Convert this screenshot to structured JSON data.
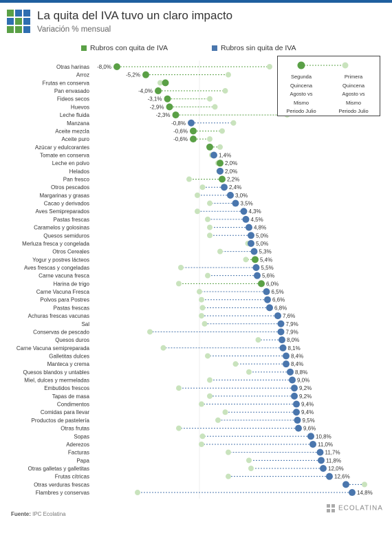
{
  "title": "La quita del IVA tuvo un claro impacto",
  "subtitle": "Variación % mensual",
  "colors": {
    "green": "#5aa046",
    "blue": "#4a76ad",
    "light": "#c9e3bd",
    "accent": "#1f5f9f"
  },
  "legend": {
    "with_iva_cut": "Rubros con quita de IVA",
    "without_iva_cut": "Rubros sin quita de IVA"
  },
  "key_box": {
    "left_label": [
      "Segunda",
      "Quincena",
      "Agosto vs",
      "Mismo",
      "Periodo Julio"
    ],
    "right_label": [
      "Primera",
      "Quincena",
      "Agosto vs",
      "Mismo",
      "Periodo Julio"
    ]
  },
  "source": {
    "label": "Fuente:",
    "text": "IPC Ecolatina"
  },
  "brand": "ECOLATINA",
  "chart_data": {
    "type": "dumbbell",
    "title": "La quita del IVA tuvo un claro impacto",
    "ylabel": "Variación % mensual",
    "x_unit": "%",
    "xlim": [
      -10,
      17
    ],
    "series": [
      {
        "name": "Segunda Quincena Agosto vs Mismo Periodo Julio",
        "field": "second"
      },
      {
        "name": "Primera Quincena Agosto vs Mismo Periodo Julio",
        "field": "first"
      }
    ],
    "items": [
      {
        "category": "Otras harinas",
        "second": -8.0,
        "first": 6.8,
        "label": "-8,0%",
        "group": "con"
      },
      {
        "category": "Arroz",
        "second": -5.2,
        "first": 2.8,
        "label": "-5,2%",
        "group": "con"
      },
      {
        "category": "Frutas en conserva",
        "second": -3.3,
        "first": -3.8,
        "label": "",
        "group": "con"
      },
      {
        "category": "Pan envasado",
        "second": -4.0,
        "first": 2.5,
        "label": "-4,0%",
        "group": "con"
      },
      {
        "category": "Fideos secos",
        "second": -3.1,
        "first": 1.0,
        "label": "-3,1%",
        "group": "con"
      },
      {
        "category": "Huevos",
        "second": -2.9,
        "first": 1.5,
        "label": "-2,9%",
        "group": "con"
      },
      {
        "category": "Leche fluida",
        "second": -2.3,
        "first": 8.5,
        "label": "-2,3%",
        "group": "con"
      },
      {
        "category": "Manzana",
        "second": -0.8,
        "first": 3.3,
        "label": "-0,8%",
        "group": "sin"
      },
      {
        "category": "Aceite mezcla",
        "second": -0.6,
        "first": 2.2,
        "label": "-0,6%",
        "group": "con"
      },
      {
        "category": "Aceite puro",
        "second": -0.6,
        "first": 1.0,
        "label": "-0,6%",
        "group": "con"
      },
      {
        "category": "Azúcar y edulcorantes",
        "second": 1.0,
        "first": 2.0,
        "label": "",
        "group": "con"
      },
      {
        "category": "Tomate en conserva",
        "second": 1.4,
        "first": 1.2,
        "label": "1,4%",
        "group": "sin"
      },
      {
        "category": "Leche en polvo",
        "second": 2.0,
        "first": 1.8,
        "label": "2,0%",
        "group": "con"
      },
      {
        "category": "Helados",
        "second": 2.0,
        "first": 1.9,
        "label": "2,0%",
        "group": "sin"
      },
      {
        "category": "Pan fresco",
        "second": 2.2,
        "first": -1.0,
        "label": "2,2%",
        "group": "con"
      },
      {
        "category": "Otros pescados",
        "second": 2.4,
        "first": 0.3,
        "label": "2,4%",
        "group": "sin"
      },
      {
        "category": "Margarinas y grasas",
        "second": 3.0,
        "first": -0.2,
        "label": "3,0%",
        "group": "sin"
      },
      {
        "category": "Cacao y derivados",
        "second": 3.5,
        "first": 1.0,
        "label": "3,5%",
        "group": "sin"
      },
      {
        "category": "Aves Semipreparados",
        "second": 4.3,
        "first": -0.2,
        "label": "4,3%",
        "group": "sin"
      },
      {
        "category": "Pastas frescas",
        "second": 4.5,
        "first": 0.8,
        "label": "4,5%",
        "group": "sin"
      },
      {
        "category": "Caramelos y golosinas",
        "second": 4.8,
        "first": 1.0,
        "label": "4,8%",
        "group": "sin"
      },
      {
        "category": "Quesos semiduros",
        "second": 5.0,
        "first": 1.0,
        "label": "5,0%",
        "group": "sin"
      },
      {
        "category": "Merluza fresca y congelada",
        "second": 5.0,
        "first": 4.7,
        "label": "5,0%",
        "group": "sin"
      },
      {
        "category": "Otros Cereales",
        "second": 5.3,
        "first": 2.0,
        "label": "5,3%",
        "group": "sin"
      },
      {
        "category": "Yogur y postres lácteos",
        "second": 5.4,
        "first": 4.5,
        "label": "5,4%",
        "group": "con"
      },
      {
        "category": "Aves frescas y congeladas",
        "second": 5.5,
        "first": -1.8,
        "label": "5,5%",
        "group": "sin"
      },
      {
        "category": "Carne vacuna fresca",
        "second": 5.6,
        "first": 0.8,
        "label": "5,6%",
        "group": "sin"
      },
      {
        "category": "Harina de trigo",
        "second": 6.0,
        "first": -2.0,
        "label": "6,0%",
        "group": "con"
      },
      {
        "category": "Carne Vacuna Fresca",
        "second": 6.5,
        "first": 0.0,
        "label": "6,5%",
        "group": "sin"
      },
      {
        "category": "Polvos para Postres",
        "second": 6.6,
        "first": 0.2,
        "label": "6,6%",
        "group": "sin"
      },
      {
        "category": "Pastas frescas",
        "second": 6.8,
        "first": 0.3,
        "label": "6,8%",
        "group": "sin"
      },
      {
        "category": "Achuras frescas vacunas",
        "second": 7.6,
        "first": 0.2,
        "label": "7,6%",
        "group": "sin"
      },
      {
        "category": "Sal",
        "second": 7.9,
        "first": 0.5,
        "label": "7,9%",
        "group": "sin"
      },
      {
        "category": "Conservas de pescado",
        "second": 7.9,
        "first": -4.8,
        "label": "7,9%",
        "group": "sin"
      },
      {
        "category": "Quesos duros",
        "second": 8.0,
        "first": 5.7,
        "label": "8,0%",
        "group": "sin"
      },
      {
        "category": "Carne Vacuna semipreparada",
        "second": 8.1,
        "first": -3.5,
        "label": "8,1%",
        "group": "sin"
      },
      {
        "category": "Galletitas dulces",
        "second": 8.4,
        "first": 0.8,
        "label": "8,4%",
        "group": "sin"
      },
      {
        "category": "Manteca y crema",
        "second": 8.4,
        "first": 3.5,
        "label": "8,4%",
        "group": "sin"
      },
      {
        "category": "Quesos blandos y untables",
        "second": 8.8,
        "first": 4.8,
        "label": "8,8%",
        "group": "sin"
      },
      {
        "category": "Miel, dulces y mermeladas",
        "second": 9.0,
        "first": 1.0,
        "label": "9,0%",
        "group": "sin"
      },
      {
        "category": "Embutidos frescos",
        "second": 9.2,
        "first": -2.0,
        "label": "9,2%",
        "group": "sin"
      },
      {
        "category": "Tapas de masa",
        "second": 9.2,
        "first": 1.0,
        "label": "9,2%",
        "group": "sin"
      },
      {
        "category": "Condimentos",
        "second": 9.4,
        "first": 0.2,
        "label": "9,4%",
        "group": "sin"
      },
      {
        "category": "Comidas para llevar",
        "second": 9.4,
        "first": 2.5,
        "label": "9,4%",
        "group": "sin"
      },
      {
        "category": "Productos de pastelería",
        "second": 9.5,
        "first": 1.8,
        "label": "9,5%",
        "group": "sin"
      },
      {
        "category": "Otras frutas",
        "second": 9.6,
        "first": -2.0,
        "label": "9,6%",
        "group": "sin"
      },
      {
        "category": "Sopas",
        "second": 10.8,
        "first": 0.3,
        "label": "10,8%",
        "group": "sin"
      },
      {
        "category": "Aderezos",
        "second": 11.0,
        "first": 0.2,
        "label": "11,0%",
        "group": "sin"
      },
      {
        "category": "Facturas",
        "second": 11.7,
        "first": 2.8,
        "label": "11,7%",
        "group": "sin"
      },
      {
        "category": "Papa",
        "second": 11.8,
        "first": 4.8,
        "label": "11,8%",
        "group": "sin"
      },
      {
        "category": "Otras galletas y galletitas",
        "second": 12.0,
        "first": 5.0,
        "label": "12,0%",
        "group": "sin"
      },
      {
        "category": "Frutas cítricas",
        "second": 12.6,
        "first": 2.8,
        "label": "12,6%",
        "group": "sin"
      },
      {
        "category": "Otras verduras frescas",
        "second": 14.2,
        "first": 16.0,
        "label": "",
        "group": "sin"
      },
      {
        "category": "Flambres y conservas",
        "second": 14.8,
        "first": -6.0,
        "label": "14,8%",
        "group": "sin"
      }
    ]
  }
}
